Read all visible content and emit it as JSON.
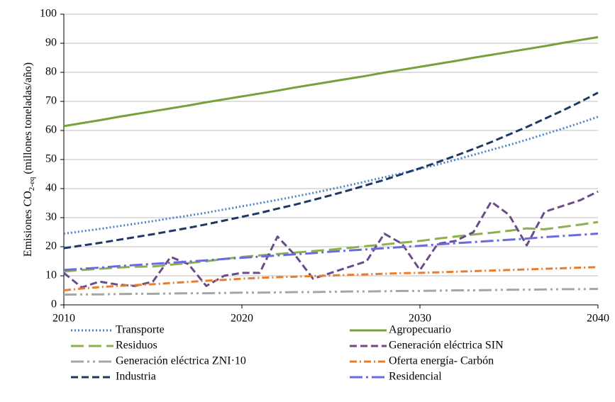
{
  "chart_data": {
    "type": "line",
    "y_label": {
      "prefix": "Emisiones CO",
      "sub": "2-eq",
      "suffix": " (millones toneladas/año)"
    },
    "x": [
      2010,
      2011,
      2012,
      2013,
      2014,
      2015,
      2016,
      2017,
      2018,
      2019,
      2020,
      2021,
      2022,
      2023,
      2024,
      2025,
      2026,
      2027,
      2028,
      2029,
      2030,
      2031,
      2032,
      2033,
      2034,
      2035,
      2036,
      2037,
      2038,
      2039,
      2040
    ],
    "xlim": [
      2010,
      2040
    ],
    "xticks": [
      2010,
      2020,
      2030,
      2040
    ],
    "ylim": [
      0,
      100
    ],
    "yticks": [
      0,
      10,
      20,
      30,
      40,
      50,
      60,
      70,
      80,
      90,
      100
    ],
    "grid": true,
    "series": [
      {
        "name": "Transporte",
        "color": "#4a86c8",
        "dash": "dot",
        "values": [
          24.5,
          25.3,
          26.1,
          27.0,
          27.9,
          28.8,
          29.8,
          30.7,
          31.7,
          32.8,
          33.9,
          35.0,
          36.1,
          37.3,
          38.5,
          39.8,
          41.1,
          42.5,
          43.9,
          45.3,
          46.8,
          48.3,
          49.9,
          51.6,
          53.3,
          55.0,
          56.8,
          58.7,
          60.6,
          62.6,
          64.7
        ]
      },
      {
        "name": "Agropecuario",
        "color": "#77a13d",
        "dash": "solid",
        "values": [
          61.5,
          62.5,
          63.5,
          64.6,
          65.6,
          66.6,
          67.6,
          68.6,
          69.7,
          70.7,
          71.7,
          72.7,
          73.7,
          74.8,
          75.8,
          76.8,
          77.8,
          78.8,
          79.9,
          80.9,
          81.9,
          82.9,
          83.9,
          85.0,
          86.0,
          87.0,
          88.0,
          89.0,
          90.1,
          91.1,
          92.1
        ]
      },
      {
        "name": "Residuos",
        "color": "#8cb050",
        "dash": "long-dash",
        "values": [
          11.5,
          12.0,
          12.4,
          12.8,
          13.1,
          13.2,
          13.8,
          14.4,
          15.0,
          15.8,
          16.5,
          17.0,
          17.5,
          18.0,
          18.5,
          19.0,
          19.6,
          20.2,
          20.8,
          21.4,
          22.0,
          22.8,
          23.5,
          24.2,
          24.8,
          25.5,
          26.3,
          26.0,
          26.8,
          27.6,
          28.5
        ]
      },
      {
        "name": "Generación eléctrica SIN",
        "color": "#6b4b8a",
        "dash": "dash",
        "values": [
          11,
          6,
          8,
          7,
          6.5,
          8,
          16.5,
          14,
          6.5,
          10,
          11,
          11,
          23.5,
          17,
          9,
          11,
          13,
          15,
          24.5,
          21,
          12,
          21,
          22,
          25,
          35.5,
          31,
          20.5,
          32,
          34,
          36,
          39
        ]
      },
      {
        "name": "Generación eléctrica ZNI·10",
        "color": "#a6a6a6",
        "dash": "long-dash-dot-dot",
        "values": [
          3.5,
          3.6,
          3.6,
          3.7,
          3.8,
          3.8,
          3.9,
          4.0,
          4.0,
          4.1,
          4.2,
          4.2,
          4.3,
          4.4,
          4.4,
          4.5,
          4.6,
          4.6,
          4.7,
          4.8,
          4.8,
          4.9,
          5.0,
          5.0,
          5.1,
          5.2,
          5.2,
          5.3,
          5.4,
          5.4,
          5.5
        ]
      },
      {
        "name": "Oferta energía- Carbón",
        "color": "#e87d2e",
        "dash": "dash-dot",
        "values": [
          5.0,
          5.6,
          6.1,
          6.5,
          6.8,
          7.1,
          7.5,
          7.9,
          8.3,
          8.6,
          9.0,
          9.3,
          9.5,
          9.7,
          9.9,
          10.1,
          10.3,
          10.5,
          10.7,
          10.9,
          11.0,
          11.2,
          11.4,
          11.6,
          11.8,
          12.0,
          12.2,
          12.4,
          12.6,
          12.8,
          13.0
        ]
      },
      {
        "name": "Industria",
        "color": "#1f3864",
        "dash": "dash",
        "values": [
          19.5,
          20.4,
          21.3,
          22.3,
          23.3,
          24.3,
          25.4,
          26.5,
          27.7,
          29.0,
          30.3,
          31.6,
          33.1,
          34.5,
          36.1,
          37.7,
          39.4,
          41.2,
          43.0,
          45.0,
          47.0,
          49.1,
          51.3,
          53.6,
          56.0,
          58.6,
          61.2,
          64.0,
          66.8,
          69.8,
          73.0
        ]
      },
      {
        "name": "Residencial",
        "color": "#6a6be0",
        "dash": "long-dash-dot",
        "values": [
          12.0,
          12.4,
          12.8,
          13.3,
          13.7,
          14.1,
          14.5,
          14.9,
          15.3,
          15.8,
          16.2,
          16.6,
          17.0,
          17.4,
          17.8,
          18.3,
          18.7,
          19.1,
          19.5,
          19.9,
          20.3,
          20.8,
          21.2,
          21.6,
          22.0,
          22.4,
          22.8,
          23.3,
          23.7,
          24.1,
          24.5
        ]
      }
    ]
  }
}
